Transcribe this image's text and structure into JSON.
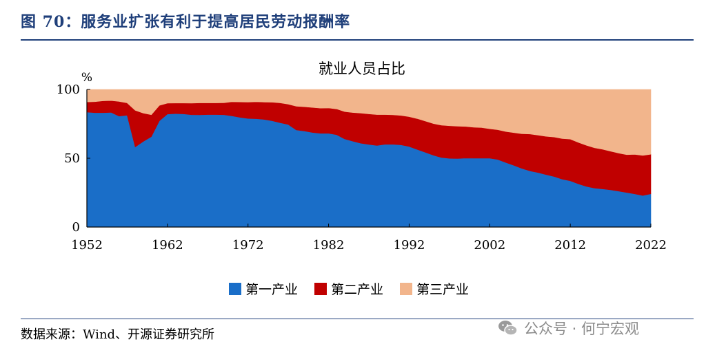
{
  "figure": {
    "title": "图 70：服务业扩张有利于提高居民劳动报酬率",
    "source": "数据来源：Wind、开源证券研究所",
    "watermark": "公众号 · 何宁宏观",
    "watermark_icon": "wechat-icon"
  },
  "chart_data": {
    "type": "area",
    "stacked": true,
    "title": "就业人员占比",
    "ylabel": "%",
    "ylim": [
      0,
      100
    ],
    "yticks": [
      0,
      50,
      100
    ],
    "xlim": [
      1952,
      2022
    ],
    "xticks": [
      1952,
      1962,
      1972,
      1982,
      1992,
      2002,
      2012,
      2022
    ],
    "grid": false,
    "legend_position": "bottom",
    "x": [
      1952,
      1953,
      1954,
      1955,
      1956,
      1957,
      1958,
      1959,
      1960,
      1961,
      1962,
      1963,
      1964,
      1965,
      1966,
      1967,
      1968,
      1969,
      1970,
      1971,
      1972,
      1973,
      1974,
      1975,
      1976,
      1977,
      1978,
      1979,
      1980,
      1981,
      1982,
      1983,
      1984,
      1985,
      1986,
      1987,
      1988,
      1989,
      1990,
      1991,
      1992,
      1993,
      1994,
      1995,
      1996,
      1997,
      1998,
      1999,
      2000,
      2001,
      2002,
      2003,
      2004,
      2005,
      2006,
      2007,
      2008,
      2009,
      2010,
      2011,
      2012,
      2013,
      2014,
      2015,
      2016,
      2017,
      2018,
      2019,
      2020,
      2021,
      2022
    ],
    "series": [
      {
        "name": "第一产业",
        "color": "#1a6ec8",
        "values": [
          83.5,
          83.1,
          83.1,
          83.3,
          80.6,
          81.2,
          58.2,
          62.2,
          65.7,
          77.2,
          82.1,
          82.4,
          82.2,
          81.6,
          81.5,
          81.7,
          81.7,
          81.6,
          80.8,
          79.7,
          78.9,
          78.7,
          78.2,
          77.2,
          75.8,
          74.5,
          70.5,
          69.8,
          68.7,
          68.1,
          68.1,
          67.1,
          64.0,
          62.4,
          60.9,
          60.0,
          59.3,
          60.1,
          60.1,
          59.7,
          58.5,
          56.4,
          54.3,
          52.2,
          50.5,
          49.9,
          49.8,
          50.1,
          50.0,
          50.0,
          50.0,
          49.1,
          46.9,
          44.8,
          42.6,
          40.8,
          39.6,
          38.1,
          36.7,
          34.8,
          33.6,
          31.4,
          29.5,
          28.3,
          27.7,
          27.0,
          26.1,
          25.1,
          24.1,
          22.9,
          24.1
        ]
      },
      {
        "name": "第二产业",
        "color": "#c00000",
        "values": [
          7.4,
          8.0,
          8.6,
          8.6,
          10.7,
          9.0,
          26.6,
          20.6,
          15.9,
          11.2,
          7.9,
          7.7,
          7.9,
          8.4,
          8.7,
          8.5,
          8.5,
          8.7,
          10.2,
          11.2,
          11.9,
          12.3,
          12.6,
          13.5,
          14.4,
          14.8,
          17.3,
          17.6,
          18.2,
          18.3,
          18.4,
          18.7,
          19.9,
          20.8,
          21.9,
          22.2,
          22.4,
          21.6,
          21.4,
          21.4,
          21.7,
          22.4,
          22.7,
          23.0,
          23.5,
          23.7,
          23.5,
          23.0,
          22.5,
          22.3,
          21.4,
          21.6,
          22.5,
          23.8,
          25.2,
          26.8,
          27.2,
          27.8,
          28.7,
          29.5,
          30.3,
          30.1,
          29.9,
          29.3,
          28.8,
          28.1,
          27.6,
          27.5,
          28.7,
          29.1,
          28.8
        ]
      },
      {
        "name": "第三产业",
        "color": "#f2b58c",
        "values": [
          9.1,
          8.9,
          8.3,
          8.1,
          8.7,
          9.8,
          15.2,
          17.2,
          18.4,
          11.6,
          10.0,
          9.9,
          9.9,
          10.0,
          9.8,
          9.8,
          9.8,
          9.7,
          9.0,
          9.1,
          9.2,
          9.0,
          9.2,
          9.3,
          9.8,
          10.7,
          12.2,
          12.6,
          13.1,
          13.6,
          13.5,
          14.2,
          16.1,
          16.8,
          17.2,
          17.8,
          18.3,
          18.3,
          18.5,
          18.9,
          19.8,
          21.2,
          23.0,
          24.8,
          26.0,
          26.4,
          26.7,
          26.9,
          27.5,
          27.7,
          28.6,
          29.3,
          30.6,
          31.4,
          32.2,
          32.4,
          33.2,
          34.1,
          34.6,
          35.7,
          36.1,
          38.5,
          40.6,
          42.4,
          43.5,
          44.9,
          46.3,
          47.4,
          47.2,
          48.0,
          47.1
        ]
      }
    ]
  }
}
